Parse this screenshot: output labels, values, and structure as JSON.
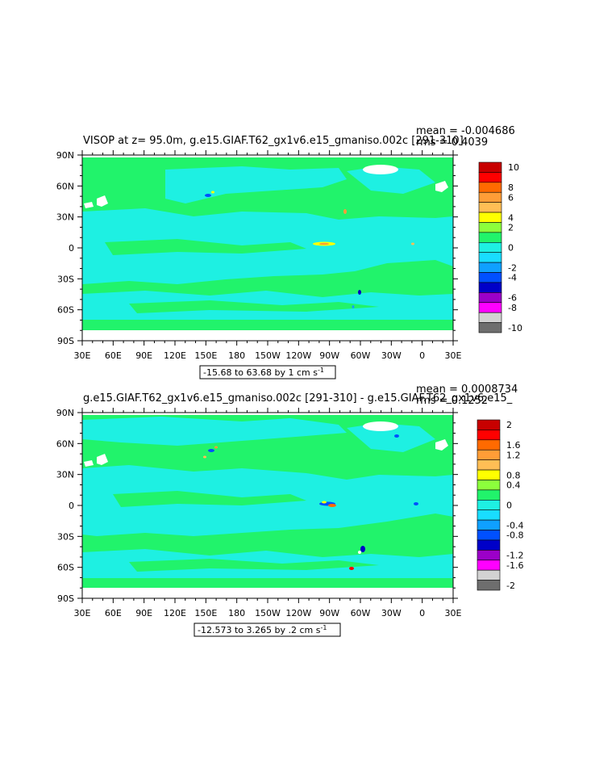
{
  "colors": {
    "ocean_green": "#21f36b",
    "ocean_cyan": "#1ef0e2",
    "land": "#ffffff",
    "frame": "#000000"
  },
  "chart_data": [
    {
      "type": "heatmap",
      "title": "VISOP at z=  95.0m, g.e15.GIAF.T62_gx1v6.e15_gmaniso.002c [291-310]",
      "mean_label": "mean = -0.004686",
      "rms_label": "rms = 0.4039",
      "range_label": "-15.68 to 63.68 by 1 cm s",
      "range_unit_sup": "-1",
      "x_ticks": [
        "30E",
        "60E",
        "90E",
        "120E",
        "150E",
        "180",
        "150W",
        "120W",
        "90W",
        "60W",
        "30W",
        "0",
        "30E"
      ],
      "y_ticks": [
        "90N",
        "60N",
        "30N",
        "0",
        "30S",
        "60S",
        "90S"
      ],
      "colorbar_labels": [
        "10",
        "8",
        "6",
        "4",
        "2",
        "0",
        "-2",
        "-4",
        "-6",
        "-8",
        "-10"
      ],
      "colorbar_colors": [
        "#c80000",
        "#ff0000",
        "#ff6a00",
        "#ff9d37",
        "#ffbe55",
        "#ffff00",
        "#8cff3c",
        "#21f36b",
        "#1ef0e2",
        "#19ddff",
        "#0fa0ff",
        "#0050ff",
        "#0000c8",
        "#9b00c8",
        "#ff00ff",
        "#d2d2d2",
        "#6e6e6e"
      ]
    },
    {
      "type": "heatmap",
      "title": "g.e15.GIAF.T62_gx1v6.e15_gmaniso.002c [291-310] - g.e15.GIAF.T62_gx1v6.e15_",
      "mean_label": "mean = 0.0008734",
      "rms_label": "rms = 0.1252",
      "range_label": "-12.573 to 3.265 by .2 cm s",
      "range_unit_sup": "-1",
      "x_ticks": [
        "30E",
        "60E",
        "90E",
        "120E",
        "150E",
        "180",
        "150W",
        "120W",
        "90W",
        "60W",
        "30W",
        "0",
        "30E"
      ],
      "y_ticks": [
        "90N",
        "60N",
        "30N",
        "0",
        "30S",
        "60S",
        "90S"
      ],
      "colorbar_labels": [
        "2",
        "1.6",
        "1.2",
        "0.8",
        "0.4",
        "0",
        "-0.4",
        "-0.8",
        "-1.2",
        "-1.6",
        "-2"
      ],
      "colorbar_colors": [
        "#c80000",
        "#ff0000",
        "#ff6a00",
        "#ff9d37",
        "#ffbe55",
        "#ffff00",
        "#8cff3c",
        "#21f36b",
        "#1ef0e2",
        "#19ddff",
        "#0fa0ff",
        "#0050ff",
        "#0000c8",
        "#9b00c8",
        "#ff00ff",
        "#d2d2d2",
        "#6e6e6e"
      ]
    }
  ]
}
